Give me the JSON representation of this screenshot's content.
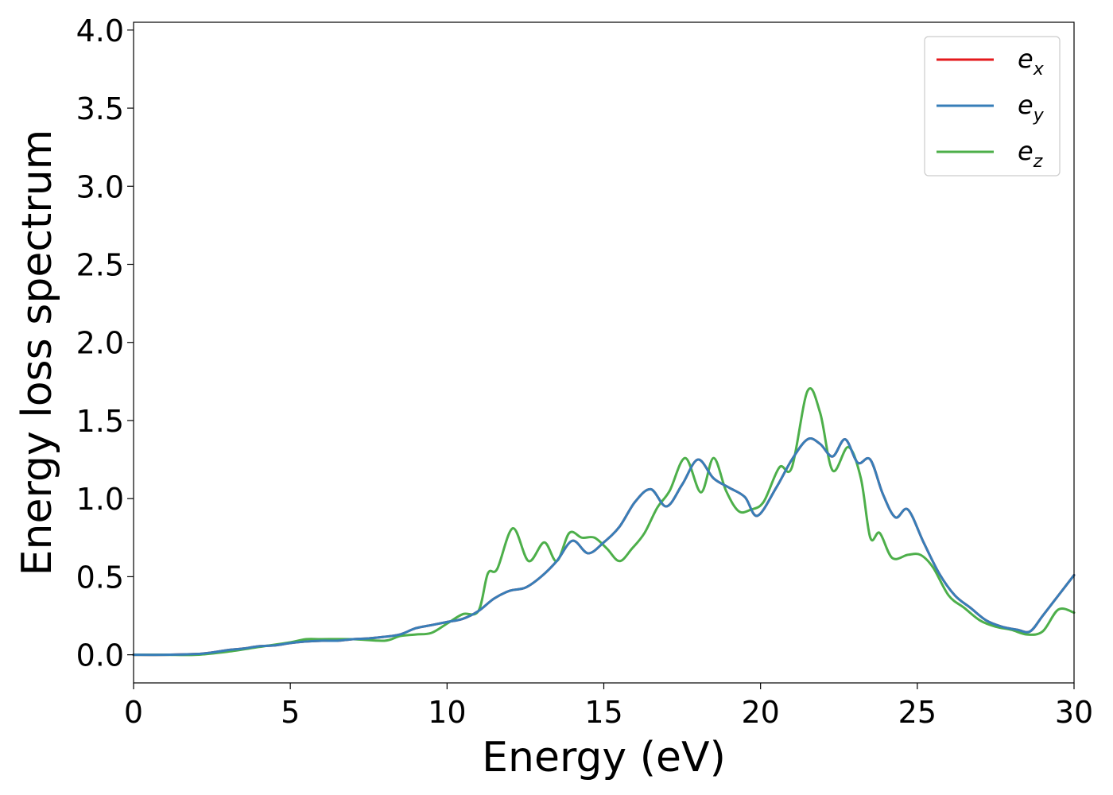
{
  "chart_data": {
    "type": "line",
    "xlabel": "Energy (eV)",
    "ylabel": "Energy loss spectrum",
    "xlim": [
      0,
      30
    ],
    "ylim": [
      -0.18,
      4.05
    ],
    "xticks": [
      0,
      5,
      10,
      15,
      20,
      25,
      30
    ],
    "yticks": [
      0.0,
      0.5,
      1.0,
      1.5,
      2.0,
      2.5,
      3.0,
      3.5,
      4.0
    ],
    "xtick_labels": [
      "0",
      "5",
      "10",
      "15",
      "20",
      "25",
      "30"
    ],
    "ytick_labels": [
      "0.0",
      "0.5",
      "1.0",
      "1.5",
      "2.0",
      "2.5",
      "3.0",
      "3.5",
      "4.0"
    ],
    "grid": false,
    "legend_position": "top-right",
    "series": [
      {
        "name": "e_x",
        "label_base": "e",
        "label_sub": "x",
        "color": "#e41a1c",
        "x": [
          0,
          1,
          2,
          2.5,
          3,
          3.5,
          4,
          4.5,
          5,
          5.5,
          6,
          6.5,
          7,
          7.5,
          8,
          8.5,
          9,
          9.5,
          10,
          10.5,
          11,
          11.5,
          12,
          12.5,
          13,
          13.5,
          14,
          14.5,
          15,
          15.5,
          16,
          16.5,
          17,
          17.5,
          18,
          18.5,
          19,
          19.5,
          19.9,
          20.5,
          21,
          21.5,
          21.9,
          22.3,
          22.7,
          23.1,
          23.5,
          23.9,
          24.3,
          24.7,
          25.2,
          25.7,
          26.2,
          26.7,
          27.2,
          27.7,
          28.2,
          28.6,
          29,
          29.5,
          30
        ],
        "y": [
          0,
          0,
          0.005,
          0.015,
          0.03,
          0.04,
          0.055,
          0.06,
          0.075,
          0.085,
          0.09,
          0.09,
          0.1,
          0.105,
          0.115,
          0.13,
          0.17,
          0.19,
          0.21,
          0.23,
          0.28,
          0.36,
          0.41,
          0.43,
          0.5,
          0.6,
          0.73,
          0.65,
          0.72,
          0.82,
          0.98,
          1.06,
          0.95,
          1.09,
          1.25,
          1.13,
          1.07,
          1.01,
          0.89,
          1.07,
          1.25,
          1.38,
          1.35,
          1.27,
          1.38,
          1.23,
          1.25,
          1.03,
          0.88,
          0.93,
          0.72,
          0.52,
          0.38,
          0.3,
          0.22,
          0.18,
          0.16,
          0.15,
          0.25,
          0.38,
          0.51
        ]
      },
      {
        "name": "e_y",
        "label_base": "e",
        "label_sub": "y",
        "color": "#377eb8",
        "x": [
          0,
          1,
          2,
          2.5,
          3,
          3.5,
          4,
          4.5,
          5,
          5.5,
          6,
          6.5,
          7,
          7.5,
          8,
          8.5,
          9,
          9.5,
          10,
          10.5,
          11,
          11.5,
          12,
          12.5,
          13,
          13.5,
          14,
          14.5,
          15,
          15.5,
          16,
          16.5,
          17,
          17.5,
          18,
          18.5,
          19,
          19.5,
          19.9,
          20.5,
          21,
          21.5,
          21.9,
          22.3,
          22.7,
          23.1,
          23.5,
          23.9,
          24.3,
          24.7,
          25.2,
          25.7,
          26.2,
          26.7,
          27.2,
          27.7,
          28.2,
          28.6,
          29,
          29.5,
          30
        ],
        "y": [
          0,
          0,
          0.005,
          0.015,
          0.03,
          0.04,
          0.055,
          0.06,
          0.075,
          0.085,
          0.09,
          0.09,
          0.1,
          0.105,
          0.115,
          0.13,
          0.17,
          0.19,
          0.21,
          0.23,
          0.28,
          0.36,
          0.41,
          0.43,
          0.5,
          0.6,
          0.73,
          0.65,
          0.72,
          0.82,
          0.98,
          1.06,
          0.95,
          1.09,
          1.25,
          1.13,
          1.07,
          1.01,
          0.89,
          1.07,
          1.25,
          1.38,
          1.35,
          1.27,
          1.38,
          1.23,
          1.25,
          1.03,
          0.88,
          0.93,
          0.72,
          0.52,
          0.38,
          0.3,
          0.22,
          0.18,
          0.16,
          0.15,
          0.25,
          0.38,
          0.51
        ]
      },
      {
        "name": "e_z",
        "label_base": "e",
        "label_sub": "z",
        "color": "#4daf4a",
        "x": [
          0,
          1,
          2,
          3,
          4,
          5,
          5.5,
          6,
          7,
          8,
          8.5,
          9,
          9.5,
          10,
          10.5,
          11,
          11.3,
          11.6,
          12.1,
          12.6,
          13.1,
          13.5,
          13.9,
          14.3,
          14.7,
          15.1,
          15.5,
          15.9,
          16.3,
          16.7,
          17.1,
          17.6,
          18.1,
          18.5,
          18.9,
          19.3,
          19.7,
          20.1,
          20.6,
          21,
          21.5,
          21.9,
          22.3,
          22.8,
          23.2,
          23.5,
          23.8,
          24.2,
          24.7,
          25.1,
          25.5,
          26,
          26.5,
          27,
          27.5,
          28,
          28.5,
          29,
          29.5,
          30
        ],
        "y": [
          0,
          0,
          0,
          0.02,
          0.05,
          0.08,
          0.1,
          0.1,
          0.1,
          0.09,
          0.12,
          0.13,
          0.14,
          0.2,
          0.26,
          0.28,
          0.52,
          0.55,
          0.81,
          0.6,
          0.72,
          0.6,
          0.78,
          0.75,
          0.75,
          0.68,
          0.6,
          0.68,
          0.78,
          0.94,
          1.05,
          1.26,
          1.04,
          1.26,
          1.05,
          0.92,
          0.93,
          0.98,
          1.2,
          1.2,
          1.69,
          1.55,
          1.18,
          1.33,
          1.13,
          0.75,
          0.78,
          0.62,
          0.64,
          0.64,
          0.56,
          0.38,
          0.3,
          0.22,
          0.18,
          0.16,
          0.13,
          0.15,
          0.29,
          0.27
        ]
      }
    ]
  }
}
